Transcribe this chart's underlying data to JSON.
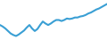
{
  "x": [
    0,
    1,
    2,
    3,
    4,
    5,
    6,
    7,
    8,
    9,
    10,
    11,
    12,
    13,
    14,
    15,
    16,
    17,
    18,
    19,
    20,
    21,
    22,
    23,
    24,
    25,
    26,
    27,
    28,
    29,
    30,
    31,
    32,
    33,
    34,
    35,
    36,
    37,
    38,
    39,
    40
  ],
  "y": [
    55,
    52,
    48,
    43,
    38,
    35,
    33,
    36,
    40,
    44,
    50,
    55,
    48,
    43,
    47,
    55,
    62,
    58,
    55,
    58,
    62,
    65,
    65,
    63,
    65,
    68,
    67,
    68,
    70,
    70,
    72,
    73,
    75,
    78,
    80,
    83,
    86,
    88,
    91,
    94,
    97
  ],
  "line_color": "#3a9fd4",
  "line_width": 1.5,
  "background_color": "#ffffff",
  "ylim": [
    25,
    105
  ],
  "xlim": [
    0,
    40
  ]
}
